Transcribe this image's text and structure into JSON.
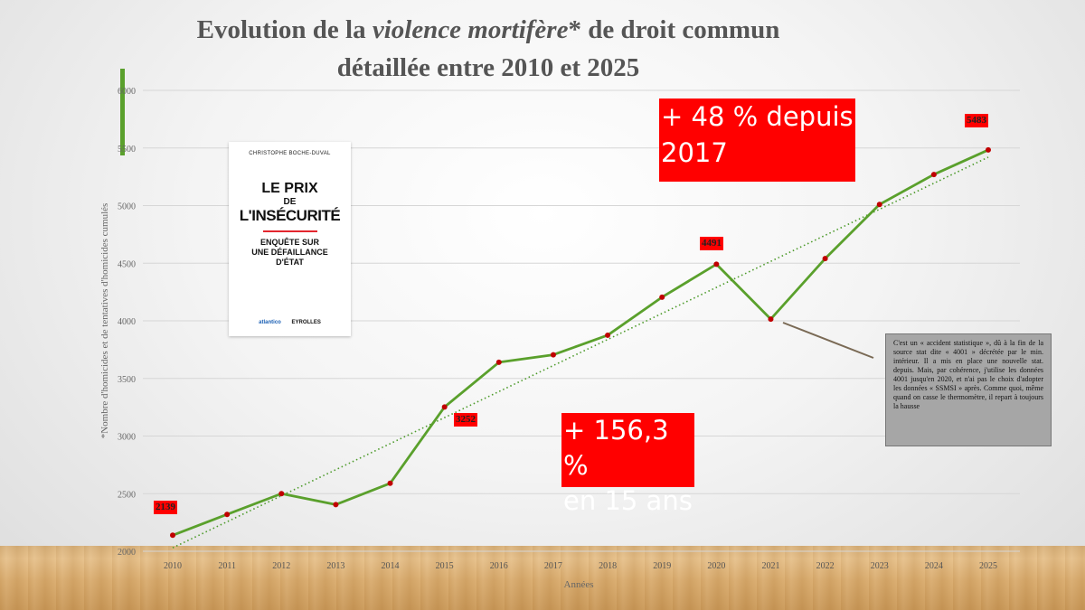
{
  "title_part1": "Evolution de la ",
  "title_italic": "violence mortifère",
  "title_part2": "* de droit commun",
  "title_line2": "détaillée entre 2010 et 2025",
  "chart_data": {
    "type": "line",
    "x": [
      "2010",
      "2011",
      "2012",
      "2013",
      "2014",
      "2015",
      "2016",
      "2017",
      "2018",
      "2019",
      "2020",
      "2021",
      "2022",
      "2023",
      "2024",
      "2025"
    ],
    "series": [
      {
        "values": [
          2139,
          2320,
          2500,
          2405,
          2590,
          3252,
          3640,
          3705,
          3875,
          4205,
          4491,
          4015,
          4540,
          5010,
          5270,
          5483
        ]
      }
    ],
    "trendline": {
      "from": [
        2010,
        2030
      ],
      "to": [
        2025,
        5420
      ],
      "style": "dotted"
    },
    "ylim": [
      2000,
      6000
    ],
    "yticks": [
      2000,
      2500,
      3000,
      3500,
      4000,
      4500,
      5000,
      5500,
      6000
    ],
    "xlabel": "Années",
    "ylabel": "*Nombre d'homicides et de tentatives d'homicides cumulés",
    "grid": "horizontal",
    "colors": {
      "line": "#5aa02c",
      "marker": "#c00000",
      "trend": "#4c9a2a"
    }
  },
  "data_labels": {
    "l2010": "2139",
    "l2015": "3252",
    "l2020": "4491",
    "l2025": "5483"
  },
  "callouts": {
    "since2017_line1": "+ 48 % depuis",
    "since2017_line2": "2017",
    "fifteen_line1": "+ 156,3 %",
    "fifteen_line2": "en 15 ans"
  },
  "note_text": "C'est un « accident statistique », dû à la fin de la source stat dite « 4001 » décrétée par le min. intérieur. Il a mis en place une nouvelle stat. depuis. Mais, par cohérence, j'utilise les données 4001 jusqu'en 2020, et n'ai pas le choix d'adopter les données « SSMSI » après. Comme quoi, même quand on casse le thermomètre, il repart à toujours la hausse",
  "book": {
    "author": "CHRISTOPHE BOCHE-DUVAL",
    "title_line1": "LE PRIX",
    "title_line2": "DE",
    "title_line3": "L'INSÉCURITÉ",
    "subtitle_line1": "ENQUÊTE SUR",
    "subtitle_line2": "UNE DÉFAILLANCE",
    "subtitle_line3": "D'ÉTAT",
    "publisher1": "atlantico",
    "publisher2": "EYROLLES"
  }
}
